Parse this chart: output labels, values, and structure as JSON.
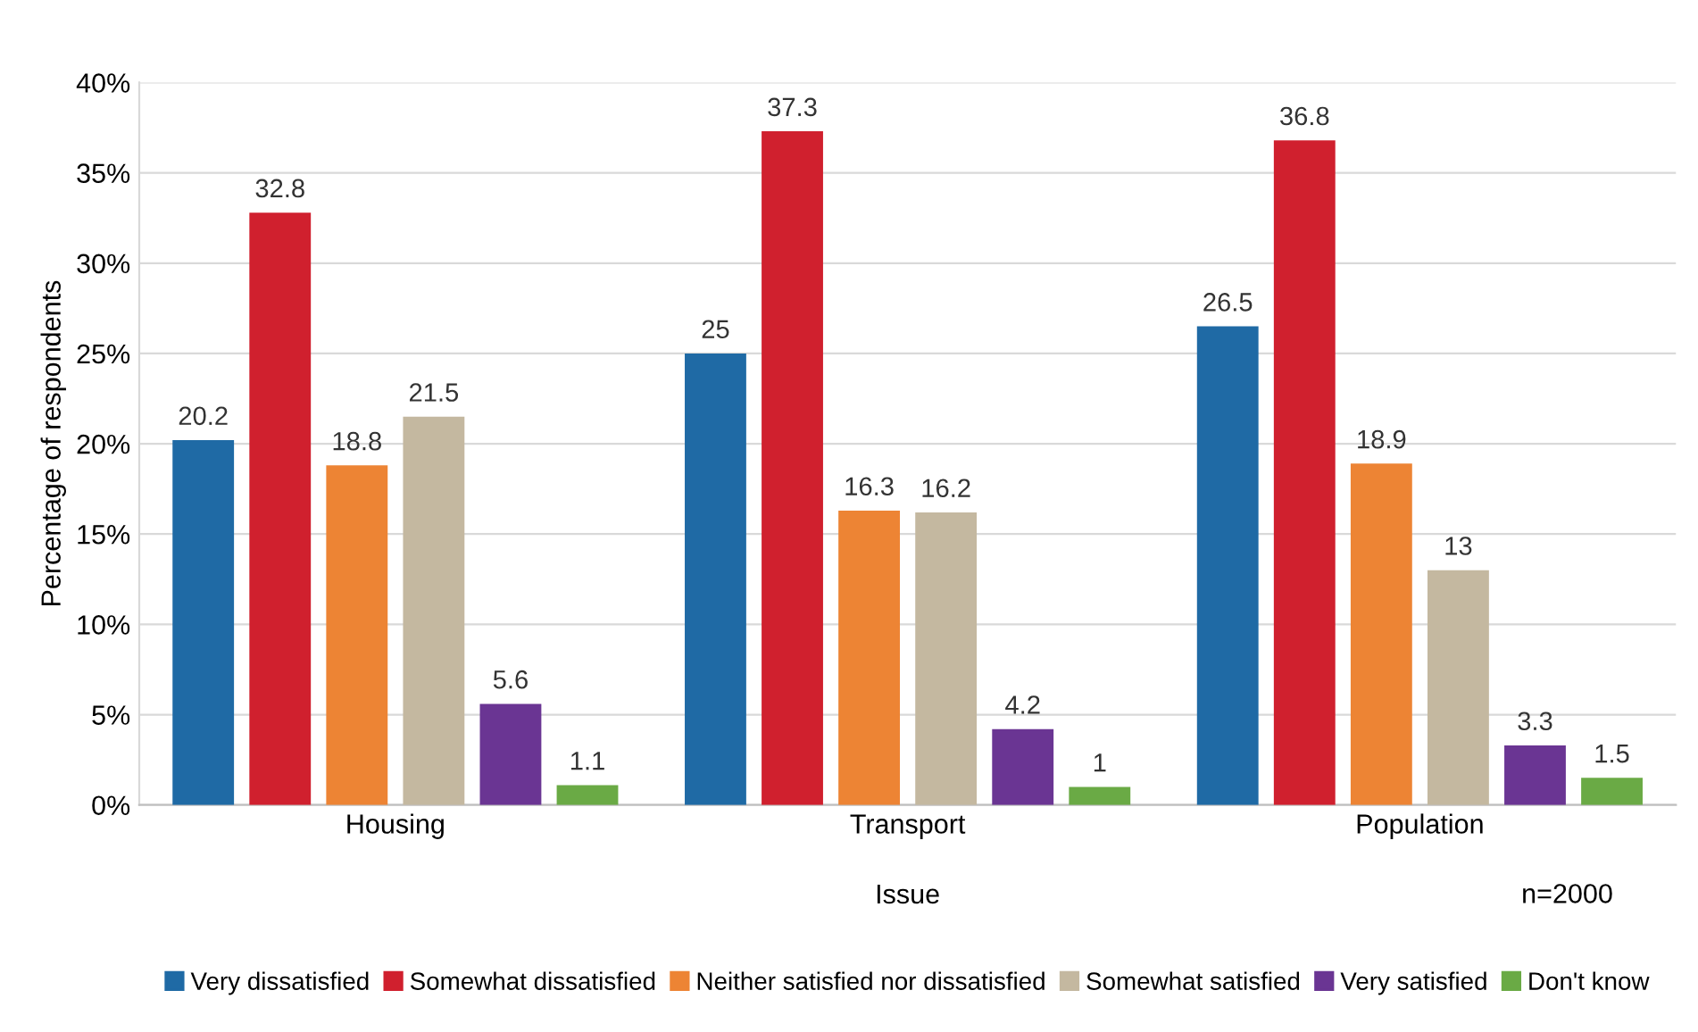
{
  "chart_data": {
    "type": "bar",
    "xlabel": "Issue",
    "ylabel": "Percentage of respondents",
    "categories": [
      "Housing",
      "Transport",
      "Population"
    ],
    "series": [
      {
        "name": "Very dissatisfied",
        "color": "#1f6aa5",
        "values": [
          20.2,
          25,
          26.5
        ]
      },
      {
        "name": "Somewhat dissatisfied",
        "color": "#d0202e",
        "values": [
          32.8,
          37.3,
          36.8
        ]
      },
      {
        "name": "Neither satisfied nor dissatisfied",
        "color": "#ed8434",
        "values": [
          18.8,
          16.3,
          18.9
        ]
      },
      {
        "name": "Somewhat satisfied",
        "color": "#c4b8a0",
        "values": [
          21.5,
          16.2,
          13
        ]
      },
      {
        "name": "Very satisfied",
        "color": "#6a3593",
        "values": [
          5.6,
          4.2,
          3.3
        ]
      },
      {
        "name": "Don't know",
        "color": "#6aaa45",
        "values": [
          1.1,
          1,
          1.5
        ]
      }
    ],
    "ylim": [
      0,
      40
    ],
    "yticks": [
      {
        "value": 0,
        "label": "0%"
      },
      {
        "value": 5,
        "label": "5%"
      },
      {
        "value": 10,
        "label": "10%"
      },
      {
        "value": 15,
        "label": "15%"
      },
      {
        "value": 20,
        "label": "20%"
      },
      {
        "value": 25,
        "label": "25%"
      },
      {
        "value": 30,
        "label": "30%"
      },
      {
        "value": 35,
        "label": "35%"
      },
      {
        "value": 40,
        "label": "40%"
      }
    ],
    "grid": "y",
    "legend": "bottom",
    "data_labels": true,
    "annotations": [
      "n=2000"
    ]
  }
}
